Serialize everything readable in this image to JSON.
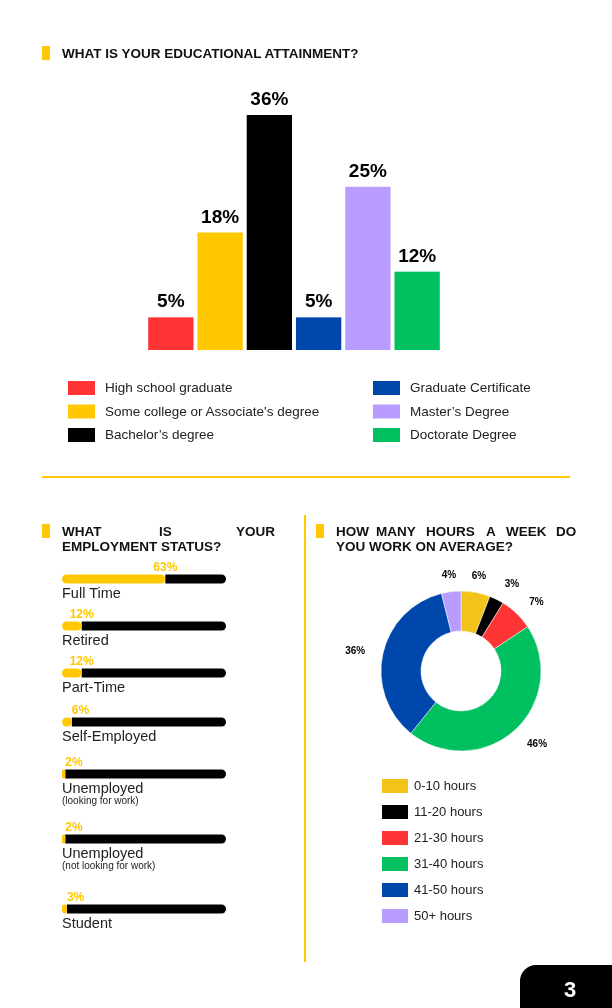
{
  "chart_data": [
    {
      "type": "bar",
      "title": "WHAT IS YOUR EDUCATIONAL ATTAINMENT?",
      "categories": [
        null
      ],
      "series": [
        {
          "name": "High school graduate",
          "color": "#ff3333",
          "values": [
            5
          ],
          "value_labels": [
            "5%"
          ]
        },
        {
          "name": "Some college or Associate's degree",
          "color": "#ffc800",
          "values": [
            18
          ],
          "value_labels": [
            "18%"
          ]
        },
        {
          "name": "Bachelor’s degree",
          "color": "#000000",
          "values": [
            36
          ],
          "value_labels": [
            "36%"
          ]
        },
        {
          "name": "Graduate Certificate",
          "color": "#0047ab",
          "values": [
            5
          ],
          "value_labels": [
            "5%"
          ]
        },
        {
          "name": "Master’s Degree",
          "color": "#b99cff",
          "values": [
            25
          ],
          "value_labels": [
            "25%"
          ]
        },
        {
          "name": "Doctorate Degree",
          "color": "#00c060",
          "values": [
            12
          ],
          "value_labels": [
            "12%"
          ]
        }
      ],
      "legend": "bottom",
      "tick_labels": false
    },
    {
      "type": "bar",
      "orientation": "horizontal",
      "title": "WHAT IS YOUR EMPLOYMENT STATUS?",
      "categories": [
        "Full Time",
        "Retired",
        "Part-Time",
        "Self-Employed",
        "Unemployed\n(looking for work)",
        "Unemployed\n(not looking for work)",
        "Student"
      ],
      "values": [
        63,
        12,
        12,
        6,
        2,
        2,
        3
      ],
      "color": "#ffc800",
      "value_labels": [
        "63%",
        "12%",
        "12%",
        "6%",
        "2%",
        "2%",
        "3%"
      ],
      "xlim": [
        0,
        100
      ],
      "tick_labels": "y"
    },
    {
      "type": "donut",
      "title": "HOW MANY HOURS A WEEK DO YOU WORK ON AVERAGE?",
      "categories": [
        "0-10 hours",
        "11-20 hours",
        "21-30 hours",
        "31-40 hours",
        "41-50 hours",
        "50+ hours"
      ],
      "values": [
        6,
        3,
        7,
        46,
        36,
        4
      ],
      "colors": [
        "#f2c318",
        "#000000",
        "#ff3535",
        "#00c060",
        "#0047ab",
        "#b99cff"
      ],
      "value_labels": [
        "6%",
        "3%",
        "7%",
        "46%",
        "36%",
        "4%"
      ],
      "legend": "bottom",
      "annotations": [
        "3"
      ]
    }
  ]
}
